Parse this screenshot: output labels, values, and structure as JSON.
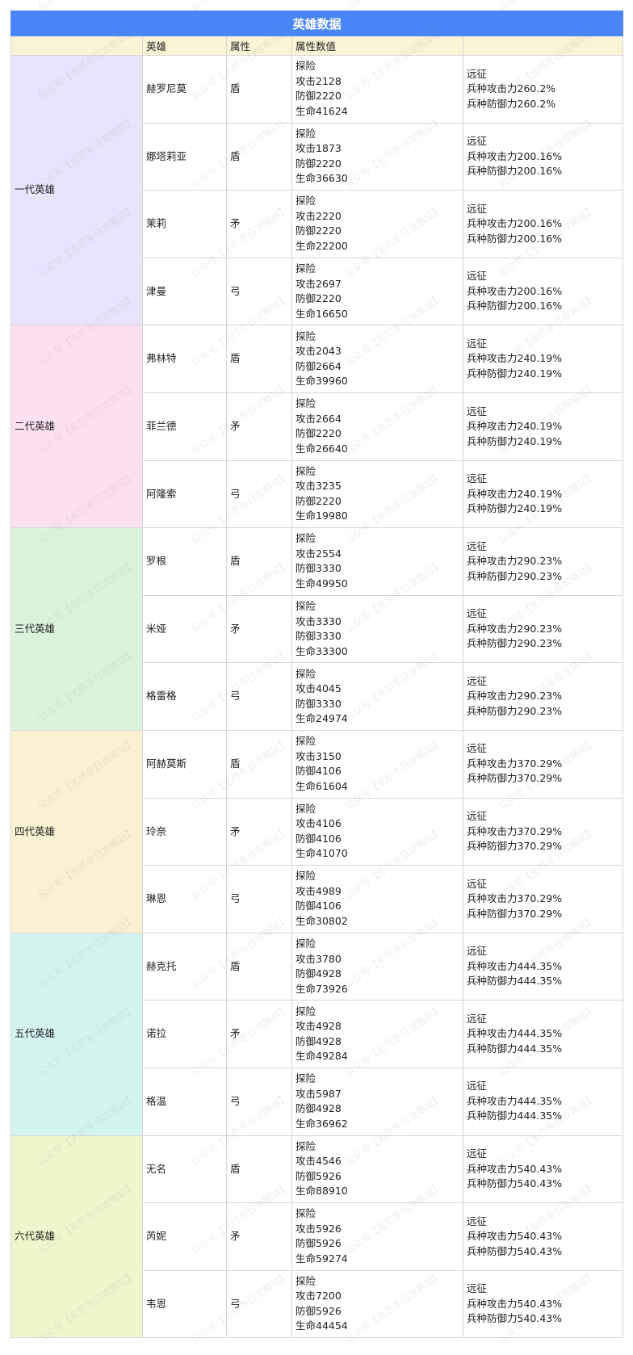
{
  "title": "英雄数据",
  "headers": [
    "",
    "英雄",
    "属性",
    "属性数值",
    ""
  ],
  "colors": {
    "title": "#4a86f7",
    "header": "#fbf3d5",
    "groups": [
      "#e9e3fd",
      "#fde0ef",
      "#dbf3dc",
      "#faf0d2",
      "#d4f5ef",
      "#eef6cc"
    ]
  },
  "watermark": "公众号【无尽冬日攻略站】",
  "groups": [
    {
      "name": "一代英雄",
      "heroes": [
        {
          "name": "赫罗尼莫",
          "type": "盾",
          "explore": [
            "探险",
            "攻击2128",
            "防御2220",
            "生命41624"
          ],
          "expedition": [
            "远征",
            "兵种攻击力260.2%",
            "兵种防御力260.2%"
          ]
        },
        {
          "name": "娜塔莉亚",
          "type": "盾",
          "explore": [
            "探险",
            "攻击1873",
            "防御2220",
            "生命36630"
          ],
          "expedition": [
            "远征",
            "兵种攻击力200.16%",
            "兵种防御力200.16%"
          ]
        },
        {
          "name": "茉莉",
          "type": "矛",
          "explore": [
            "探险",
            "攻击2220",
            "防御2220",
            "生命22200"
          ],
          "expedition": [
            "远征",
            "兵种攻击力200.16%",
            "兵种防御力200.16%"
          ]
        },
        {
          "name": "津曼",
          "type": "弓",
          "explore": [
            "探险",
            "攻击2697",
            "防御2220",
            "生命16650"
          ],
          "expedition": [
            "远征",
            "兵种攻击力200.16%",
            "兵种防御力200.16%"
          ]
        }
      ]
    },
    {
      "name": "二代英雄",
      "heroes": [
        {
          "name": "弗林特",
          "type": "盾",
          "explore": [
            "探险",
            "攻击2043",
            "防御2664",
            "生命39960"
          ],
          "expedition": [
            "远征",
            "兵种攻击力240.19%",
            "兵种防御力240.19%"
          ]
        },
        {
          "name": "菲兰德",
          "type": "矛",
          "explore": [
            "探险",
            "攻击2664",
            "防御2220",
            "生命26640"
          ],
          "expedition": [
            "远征",
            "兵种攻击力240.19%",
            "兵种防御力240.19%"
          ]
        },
        {
          "name": "阿隆索",
          "type": "弓",
          "explore": [
            "探险",
            "攻击3235",
            "防御2220",
            "生命19980"
          ],
          "expedition": [
            "远征",
            "兵种攻击力240.19%",
            "兵种防御力240.19%"
          ]
        }
      ]
    },
    {
      "name": "三代英雄",
      "heroes": [
        {
          "name": "罗根",
          "type": "盾",
          "explore": [
            "探险",
            "攻击2554",
            "防御3330",
            "生命49950"
          ],
          "expedition": [
            "远征",
            "兵种攻击力290.23%",
            "兵种防御力290.23%"
          ]
        },
        {
          "name": "米娅",
          "type": "矛",
          "explore": [
            "探险",
            "攻击3330",
            "防御3330",
            "生命33300"
          ],
          "expedition": [
            "远征",
            "兵种攻击力290.23%",
            "兵种防御力290.23%"
          ]
        },
        {
          "name": "格雷格",
          "type": "弓",
          "explore": [
            "探险",
            "攻击4045",
            "防御3330",
            "生命24974"
          ],
          "expedition": [
            "远征",
            "兵种攻击力290.23%",
            "兵种防御力290.23%"
          ]
        }
      ]
    },
    {
      "name": "四代英雄",
      "heroes": [
        {
          "name": "阿赫莫斯",
          "type": "盾",
          "explore": [
            "探险",
            "攻击3150",
            "防御4106",
            "生命61604"
          ],
          "expedition": [
            "远征",
            "兵种攻击力370.29%",
            "兵种防御力370.29%"
          ]
        },
        {
          "name": "玲奈",
          "type": "矛",
          "explore": [
            "探险",
            "攻击4106",
            "防御4106",
            "生命41070"
          ],
          "expedition": [
            "远征",
            "兵种攻击力370.29%",
            "兵种防御力370.29%"
          ]
        },
        {
          "name": "琳恩",
          "type": "弓",
          "explore": [
            "探险",
            "攻击4989",
            "防御4106",
            "生命30802"
          ],
          "expedition": [
            "远征",
            "兵种攻击力370.29%",
            "兵种防御力370.29%"
          ]
        }
      ]
    },
    {
      "name": "五代英雄",
      "heroes": [
        {
          "name": "赫克托",
          "type": "盾",
          "explore": [
            "探险",
            "攻击3780",
            "防御4928",
            "生命73926"
          ],
          "expedition": [
            "远征",
            "兵种攻击力444.35%",
            "兵种防御力444.35%"
          ]
        },
        {
          "name": "诺拉",
          "type": "矛",
          "explore": [
            "探险",
            "攻击4928",
            "防御4928",
            "生命49284"
          ],
          "expedition": [
            "远征",
            "兵种攻击力444.35%",
            "兵种防御力444.35%"
          ]
        },
        {
          "name": "格温",
          "type": "弓",
          "explore": [
            "探险",
            "攻击5987",
            "防御4928",
            "生命36962"
          ],
          "expedition": [
            "远征",
            "兵种攻击力444.35%",
            "兵种防御力444.35%"
          ]
        }
      ]
    },
    {
      "name": "六代英雄",
      "heroes": [
        {
          "name": "无名",
          "type": "盾",
          "explore": [
            "探险",
            "攻击4546",
            "防御5926",
            "生命88910"
          ],
          "expedition": [
            "远征",
            "兵种攻击力540.43%",
            "兵种防御力540.43%"
          ]
        },
        {
          "name": "芮妮",
          "type": "矛",
          "explore": [
            "探险",
            "攻击5926",
            "防御5926",
            "生命59274"
          ],
          "expedition": [
            "远征",
            "兵种攻击力540.43%",
            "兵种防御力540.43%"
          ]
        },
        {
          "name": "韦恩",
          "type": "弓",
          "explore": [
            "探险",
            "攻击7200",
            "防御5926",
            "生命44454"
          ],
          "expedition": [
            "远征",
            "兵种攻击力540.43%",
            "兵种防御力540.43%"
          ]
        }
      ]
    }
  ]
}
